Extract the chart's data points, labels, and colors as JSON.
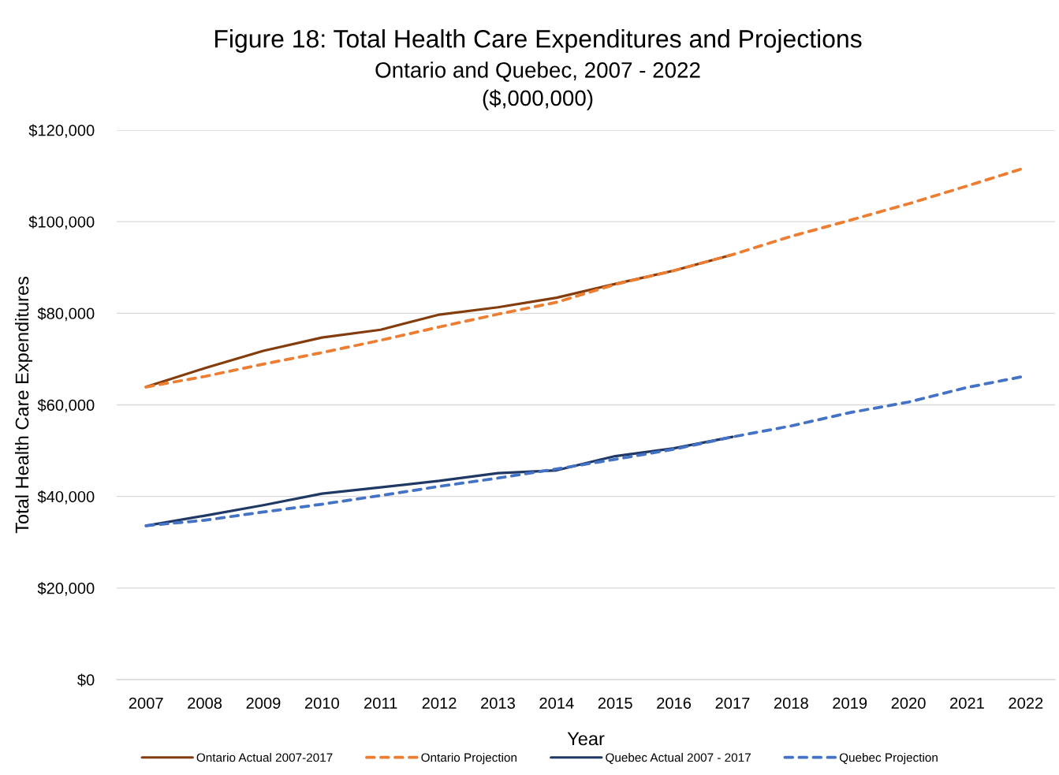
{
  "chart_data": {
    "type": "line",
    "title": "Figure 18: Total Health Care Expenditures and Projections",
    "subtitle": "Ontario and Quebec, 2007 - 2022\n($,000,000)",
    "xlabel": "Year",
    "ylabel": "Total Health Care Expenditures",
    "categories": [
      "2007",
      "2008",
      "2009",
      "2010",
      "2011",
      "2012",
      "2013",
      "2014",
      "2015",
      "2016",
      "2017",
      "2018",
      "2019",
      "2020",
      "2021",
      "2022"
    ],
    "series": [
      {
        "name": "Ontario Actual 2007-2017",
        "color": "#843c0c",
        "line_style": "solid",
        "values": [
          63900,
          68000,
          71800,
          74700,
          76400,
          79700,
          81300,
          83400,
          86400,
          89300,
          92800,
          null,
          null,
          null,
          null,
          null
        ]
      },
      {
        "name": "Ontario Projection",
        "color": "#ed7d31",
        "line_style": "dashed",
        "values": [
          63900,
          66200,
          68900,
          71400,
          74100,
          77000,
          79800,
          82400,
          86300,
          89300,
          92800,
          96800,
          100300,
          103900,
          107800,
          111800
        ]
      },
      {
        "name": "Quebec Actual 2007 - 2017",
        "color": "#1f3864",
        "line_style": "solid",
        "values": [
          33600,
          35800,
          38100,
          40600,
          42000,
          43400,
          45100,
          45700,
          48800,
          50500,
          53000,
          null,
          null,
          null,
          null,
          null
        ]
      },
      {
        "name": "Quebec Projection",
        "color": "#4472c4",
        "line_style": "dashed",
        "values": [
          33600,
          34800,
          36600,
          38300,
          40200,
          42200,
          44000,
          46000,
          48100,
          50300,
          53000,
          55400,
          58300,
          60600,
          63800,
          66300
        ]
      }
    ],
    "ylim": [
      0,
      120000
    ],
    "yticks": [
      {
        "value": 0,
        "label": "$0"
      },
      {
        "value": 20000,
        "label": "$20,000"
      },
      {
        "value": 40000,
        "label": "$40,000"
      },
      {
        "value": 60000,
        "label": "$60,000"
      },
      {
        "value": 80000,
        "label": "$80,000"
      },
      {
        "value": 100000,
        "label": "$100,000"
      },
      {
        "value": 120000,
        "label": "$120,000"
      }
    ],
    "grid": "y",
    "legend": "bottom"
  }
}
